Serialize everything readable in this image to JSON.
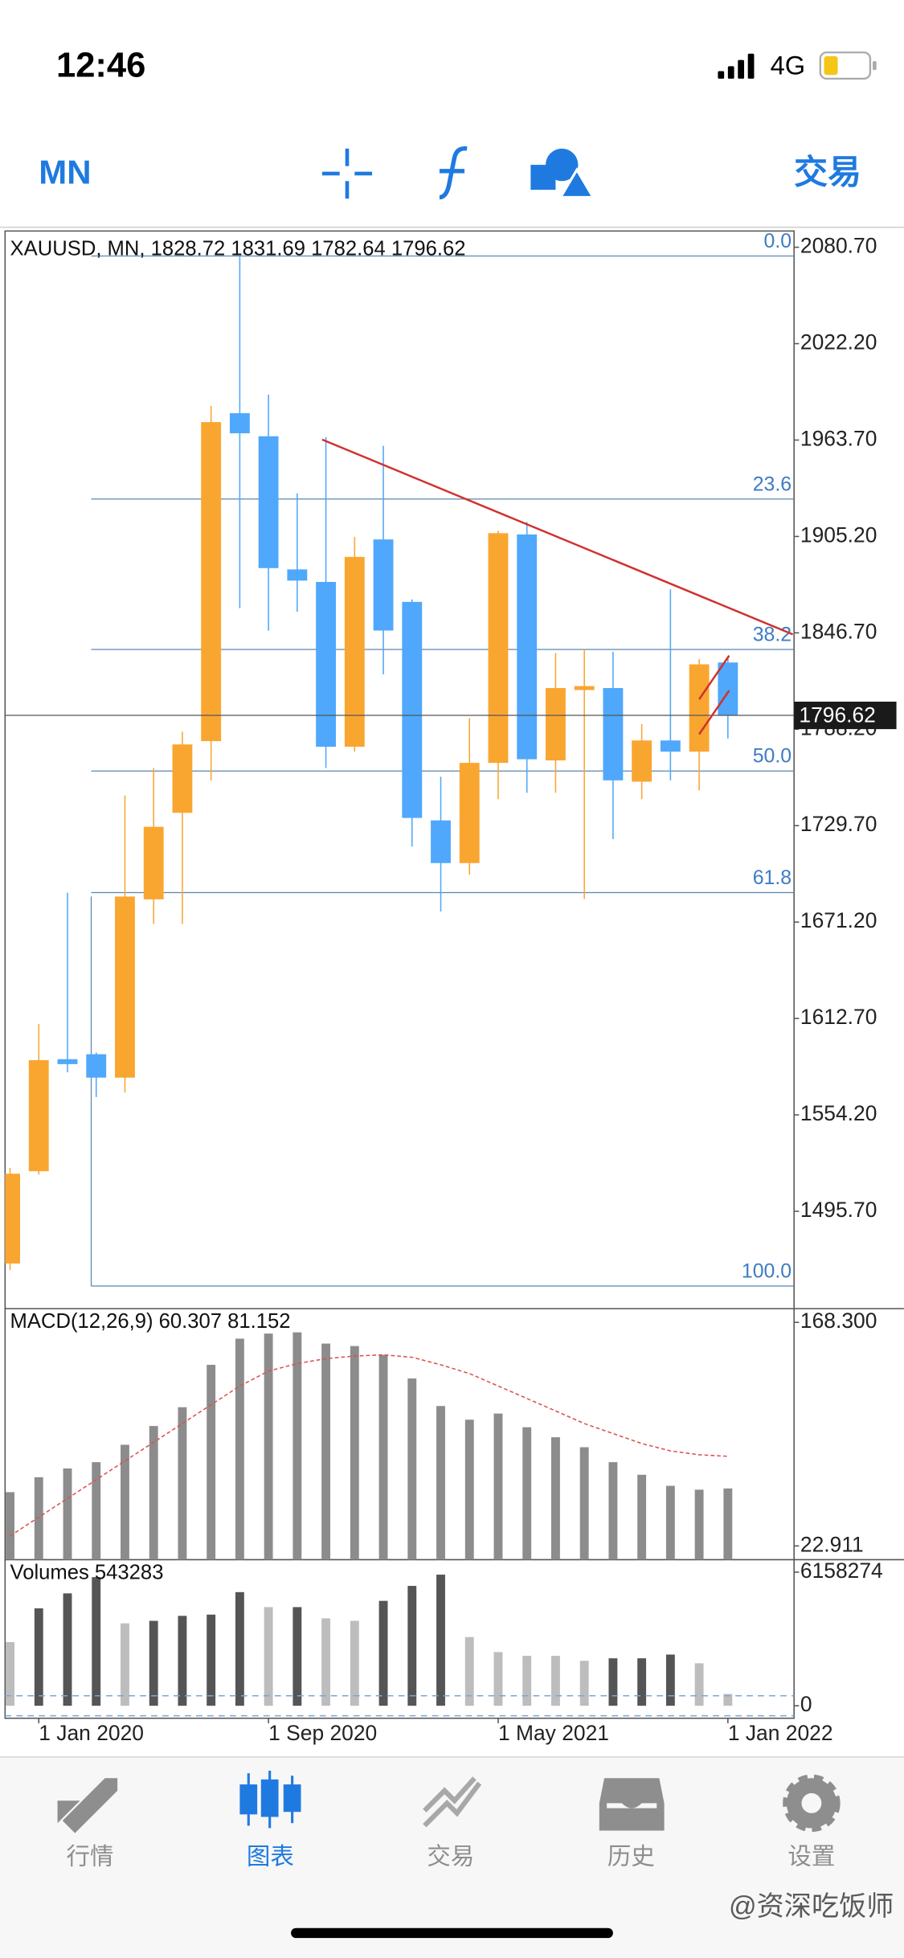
{
  "status_bar": {
    "time": "12:46",
    "network": "4G"
  },
  "toolbar": {
    "timeframe": "MN",
    "trade": "交易"
  },
  "chart": {
    "type": "candlestick",
    "header": "XAUUSD, MN, 1828.72 1831.69 1782.64 1796.62",
    "categories": [
      null,
      "1 Jan 2020",
      null,
      null,
      null,
      null,
      null,
      null,
      null,
      "1 Sep 2020",
      null,
      null,
      null,
      null,
      null,
      null,
      null,
      "1 May 2021",
      null,
      null,
      null,
      null,
      null,
      null,
      null,
      "1 Jan 2022"
    ],
    "candles": {
      "open": [
        1464,
        1520,
        1588,
        1591,
        1576.8,
        1685,
        1737.5,
        1781,
        1980,
        1966,
        1885.2,
        1877.6,
        1777.6,
        1903.4,
        1865.5,
        1732.9,
        1707,
        1767.8,
        1906.4,
        1769.3,
        1812,
        1813.2,
        1756.4,
        1781.4,
        1774.6,
        1828.72
      ],
      "high": [
        1522,
        1609.4,
        1689,
        1592,
        1748,
        1764.7,
        1786.7,
        1984.5,
        2075,
        1991.3,
        1931.4,
        1965.5,
        1904.9,
        1960.2,
        1867,
        1759.4,
        1795,
        1908.7,
        1914,
        1834.5,
        1836.7,
        1835.2,
        1791.3,
        1873.1,
        1830.7,
        1831.69
      ],
      "low": [
        1460,
        1518,
        1580,
        1565,
        1567.7,
        1670,
        1670,
        1757,
        1861.7,
        1848,
        1859.5,
        1764.7,
        1774.6,
        1821.6,
        1717,
        1677.6,
        1700,
        1745.8,
        1749.6,
        1749.6,
        1685.2,
        1721.5,
        1745.8,
        1757.2,
        1751,
        1782.64
      ],
      "close": [
        1518.5,
        1587.4,
        1585,
        1576.8,
        1686.7,
        1729,
        1779,
        1974.6,
        1967.8,
        1886,
        1878.4,
        1777.6,
        1892.8,
        1848.1,
        1734.4,
        1707,
        1767.8,
        1907.2,
        1770,
        1813.2,
        1814.4,
        1757.2,
        1781.4,
        1774.6,
        1827.6,
        1796.62
      ]
    },
    "up_color": "#f9a631",
    "down_color": "#4fa8fb",
    "ylim": [
      1436.6,
      2090.55
    ],
    "yticks": [
      {
        "value": 2080.7,
        "label": "2080.70"
      },
      {
        "value": 2022.2,
        "label": "2022.20"
      },
      {
        "value": 1963.7,
        "label": "1963.70"
      },
      {
        "value": 1905.2,
        "label": "1905.20"
      },
      {
        "value": 1846.7,
        "label": "1846.70"
      },
      {
        "value": 1788.2,
        "label": "1788.20"
      },
      {
        "value": 1729.7,
        "label": "1729.70"
      },
      {
        "value": 1671.2,
        "label": "1671.20"
      },
      {
        "value": 1612.7,
        "label": "1612.70"
      },
      {
        "value": 1554.2,
        "label": "1554.20"
      },
      {
        "value": 1495.7,
        "label": "1495.70"
      }
    ],
    "current_price": {
      "value": 1796.62,
      "label": "1796.62"
    },
    "fib_range": [
      2075.4,
      1450.3
    ],
    "fib_levels": [
      {
        "value": 0,
        "label": "0.0"
      },
      23.6,
      38.2,
      {
        "value": 50,
        "label": "50.0"
      },
      61.8,
      {
        "value": 100,
        "label": "100.0"
      }
    ],
    "fib_color": "#5b86b0",
    "trend_color": "#d0312d",
    "macd": {
      "label": "MACD(12,26,9) 60.307 81.152",
      "histogram": [
        57.9,
        67.6,
        73.3,
        77.4,
        88.7,
        100.9,
        113.1,
        140.7,
        157.7,
        161.0,
        161.8,
        154.5,
        152.9,
        147.2,
        131.8,
        113.9,
        105.0,
        109.0,
        100.1,
        93.6,
        87.1,
        77.4,
        69.2,
        62.0,
        59.5,
        60.3
      ],
      "signal": [
        29.4,
        41.6,
        53.8,
        66.0,
        78.2,
        90.3,
        102.5,
        114.7,
        126.9,
        136.6,
        141.5,
        144.7,
        146.4,
        147.2,
        145.6,
        140.7,
        135.0,
        126.9,
        118.8,
        110.7,
        102.5,
        96.0,
        89.5,
        84.7,
        82.2,
        81.2
      ],
      "bar_color": "#8c8c8c",
      "signal_color": "#d9534f",
      "ylim": [
        14.0,
        177.2
      ],
      "yticks": [
        {
          "value": 168.3,
          "label": "168.300"
        },
        22.911
      ]
    },
    "volumes": {
      "label": "Volumes 543283",
      "values": [
        2935000,
        4489000,
        5180000,
        5928000,
        3799000,
        3914000,
        4144000,
        4201000,
        5237000,
        4547000,
        4547000,
        4029000,
        3914000,
        4835000,
        5525000,
        6043000,
        3165000,
        2475000,
        2302000,
        2302000,
        2072000,
        2187000,
        2187000,
        2360000,
        1957000,
        543283
      ],
      "colors": [
        "#bdbdbd",
        "#555555",
        "#555555",
        "#555555",
        "#bdbdbd",
        "#555555",
        "#555555",
        "#555555",
        "#555555",
        "#bdbdbd",
        "#555555",
        "#bdbdbd",
        "#bdbdbd",
        "#555555",
        "#555555",
        "#555555",
        "#bdbdbd",
        "#bdbdbd",
        "#bdbdbd",
        "#bdbdbd",
        "#bdbdbd",
        "#555555",
        "#555555",
        "#555555",
        "#bdbdbd",
        "#bdbdbd"
      ],
      "ylim": [
        -575540,
        6733814
      ],
      "yticks": [
        6158274,
        0
      ]
    }
  },
  "tabs": [
    {
      "label": "行情",
      "active": false
    },
    {
      "label": "图表",
      "active": true
    },
    {
      "label": "交易",
      "active": false
    },
    {
      "label": "历史",
      "active": false
    },
    {
      "label": "设置",
      "active": false
    }
  ],
  "watermark": "@资深吃饭师"
}
